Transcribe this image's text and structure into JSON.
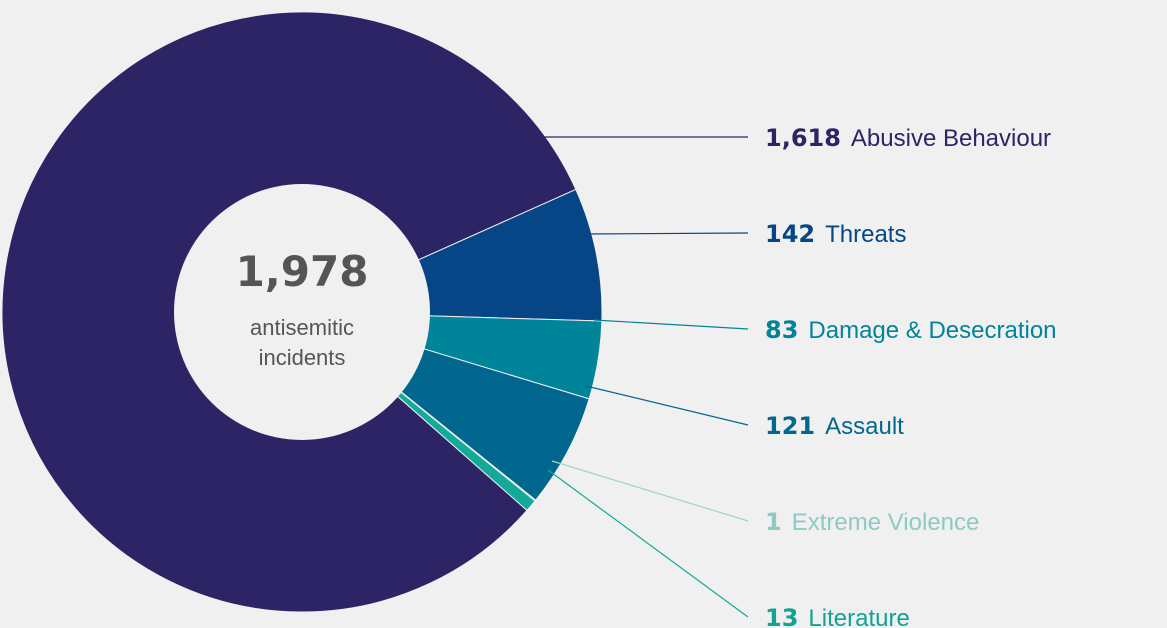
{
  "chart_data": {
    "type": "pie",
    "total": "1,978",
    "center_label": "antisemitic incidents",
    "center_lines": [
      "antisemitic",
      "incidents"
    ],
    "slices": [
      {
        "label": "Abusive Behaviour",
        "value": 1618,
        "value_text": "1,618",
        "color": "#2d2466",
        "label_color": "#2d2466",
        "line_color": "#2d2466"
      },
      {
        "label": "Threats",
        "value": 142,
        "value_text": "142",
        "color": "#064686",
        "label_color": "#064686",
        "line_color": "#064686"
      },
      {
        "label": "Damage & Desecration",
        "value": 83,
        "value_text": "83",
        "color": "#00849a",
        "label_color": "#00849a",
        "line_color": "#00849a"
      },
      {
        "label": "Assault",
        "value": 121,
        "value_text": "121",
        "color": "#01678f",
        "label_color": "#01678f",
        "line_color": "#01678f"
      },
      {
        "label": "Extreme Violence",
        "value": 1,
        "value_text": "1",
        "color": "#9dd3cc",
        "label_color": "#8ccbc4",
        "line_color": "#9dd3cc"
      },
      {
        "label": "Literature",
        "value": 13,
        "value_text": "13",
        "color": "#14aa9a",
        "label_color": "#11a394",
        "line_color": "#14aa9a"
      }
    ]
  }
}
